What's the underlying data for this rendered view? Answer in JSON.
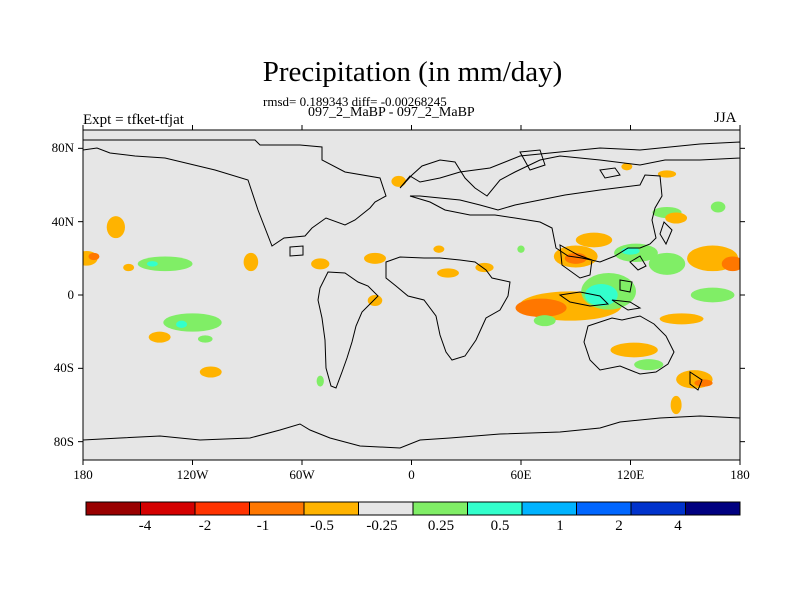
{
  "figure": {
    "title": "Precipitation (in mm/day)",
    "stats_line": "rmsd= 0.189343 diff= -0.00268245",
    "case_line": "097_2_MaBP - 097_2_MaBP",
    "left_label": "Expt = tfket-tfjat",
    "right_label": "JJA"
  },
  "map": {
    "background_color": "#e6e6e6",
    "lat_range": [
      -90,
      90
    ],
    "lon_range": [
      -180,
      180
    ],
    "y_ticks": [
      {
        "value": 80,
        "label": "80N"
      },
      {
        "value": 40,
        "label": "40N"
      },
      {
        "value": 0,
        "label": "0"
      },
      {
        "value": -40,
        "label": "40S"
      },
      {
        "value": -80,
        "label": "80S"
      }
    ],
    "x_ticks": [
      {
        "value": -180,
        "label": "180"
      },
      {
        "value": -120,
        "label": "120W"
      },
      {
        "value": -60,
        "label": "60W"
      },
      {
        "value": 0,
        "label": "0"
      },
      {
        "value": 60,
        "label": "60E"
      },
      {
        "value": 120,
        "label": "120E"
      },
      {
        "value": 180,
        "label": "180"
      }
    ]
  },
  "colorbar": {
    "colors": [
      "#990000",
      "#d40000",
      "#ff3300",
      "#ff7700",
      "#ffb300",
      "#e6e6e6",
      "#80ee66",
      "#33ffcc",
      "#00b3ff",
      "#0066ff",
      "#0033cc",
      "#000080"
    ],
    "labels": [
      "-4",
      "-2",
      "-1",
      "-0.5",
      "-0.25",
      "0.25",
      "0.5",
      "1",
      "2",
      "4"
    ]
  },
  "anomaly_regions": [
    {
      "lon": 87,
      "lat": -6,
      "rx": 28,
      "ry": 8,
      "level": "-0.5"
    },
    {
      "lon": 71,
      "lat": -7,
      "rx": 14,
      "ry": 5,
      "level": "-1"
    },
    {
      "lon": 108,
      "lat": 2,
      "rx": 15,
      "ry": 10,
      "level": "0.5"
    },
    {
      "lon": 104,
      "lat": 0,
      "rx": 9,
      "ry": 6,
      "level": "1"
    },
    {
      "lon": 90,
      "lat": 21,
      "rx": 12,
      "ry": 6,
      "level": "-0.5"
    },
    {
      "lon": 90,
      "lat": 20,
      "rx": 6,
      "ry": 3,
      "level": "-1"
    },
    {
      "lon": 123,
      "lat": 23,
      "rx": 12,
      "ry": 5,
      "level": "0.5"
    },
    {
      "lon": 120,
      "lat": 24,
      "rx": 5,
      "ry": 2,
      "level": "1"
    },
    {
      "lon": 140,
      "lat": 17,
      "rx": 10,
      "ry": 6,
      "level": "0.5"
    },
    {
      "lon": 165,
      "lat": 20,
      "rx": 14,
      "ry": 7,
      "level": "-0.5"
    },
    {
      "lon": 176,
      "lat": 17,
      "rx": 6,
      "ry": 4,
      "level": "-1"
    },
    {
      "lon": 165,
      "lat": 0,
      "rx": 12,
      "ry": 4,
      "level": "0.5"
    },
    {
      "lon": 148,
      "lat": -13,
      "rx": 12,
      "ry": 3,
      "level": "-0.5"
    },
    {
      "lon": 122,
      "lat": -30,
      "rx": 13,
      "ry": 4,
      "level": "-0.5"
    },
    {
      "lon": 155,
      "lat": -46,
      "rx": 10,
      "ry": 5,
      "level": "-0.5"
    },
    {
      "lon": 160,
      "lat": -48,
      "rx": 5,
      "ry": 2,
      "level": "-1"
    },
    {
      "lon": 145,
      "lat": -60,
      "rx": 3,
      "ry": 5,
      "level": "-0.5"
    },
    {
      "lon": 130,
      "lat": -38,
      "rx": 8,
      "ry": 3,
      "level": "0.5"
    },
    {
      "lon": 100,
      "lat": 30,
      "rx": 10,
      "ry": 4,
      "level": "-0.5"
    },
    {
      "lon": 140,
      "lat": 45,
      "rx": 8,
      "ry": 3,
      "level": "0.5"
    },
    {
      "lon": 145,
      "lat": 42,
      "rx": 6,
      "ry": 3,
      "level": "-0.5"
    },
    {
      "lon": 168,
      "lat": 48,
      "rx": 4,
      "ry": 3,
      "level": "0.5"
    },
    {
      "lon": 140,
      "lat": 66,
      "rx": 5,
      "ry": 2,
      "level": "-0.5"
    },
    {
      "lon": 118,
      "lat": 70,
      "rx": 3,
      "ry": 2,
      "level": "-0.5"
    },
    {
      "lon": -7,
      "lat": 62,
      "rx": 4,
      "ry": 3,
      "level": "-0.5"
    },
    {
      "lon": -162,
      "lat": 37,
      "rx": 5,
      "ry": 6,
      "level": "-0.5"
    },
    {
      "lon": -178,
      "lat": 20,
      "rx": 6,
      "ry": 4,
      "level": "-0.5"
    },
    {
      "lon": -174,
      "lat": 21,
      "rx": 3,
      "ry": 2,
      "level": "-1"
    },
    {
      "lon": -135,
      "lat": 17,
      "rx": 15,
      "ry": 4,
      "level": "0.5"
    },
    {
      "lon": -142,
      "lat": 17,
      "rx": 3,
      "ry": 1.5,
      "level": "1"
    },
    {
      "lon": -155,
      "lat": 15,
      "rx": 3,
      "ry": 2,
      "level": "-0.5"
    },
    {
      "lon": -120,
      "lat": -15,
      "rx": 16,
      "ry": 5,
      "level": "0.5"
    },
    {
      "lon": -113,
      "lat": -24,
      "rx": 4,
      "ry": 2,
      "level": "0.5"
    },
    {
      "lon": -126,
      "lat": -16,
      "rx": 3,
      "ry": 2,
      "level": "1"
    },
    {
      "lon": -138,
      "lat": -23,
      "rx": 6,
      "ry": 3,
      "level": "-0.5"
    },
    {
      "lon": -110,
      "lat": -42,
      "rx": 6,
      "ry": 3,
      "level": "-0.5"
    },
    {
      "lon": -88,
      "lat": 18,
      "rx": 4,
      "ry": 5,
      "level": "-0.5"
    },
    {
      "lon": -50,
      "lat": 17,
      "rx": 5,
      "ry": 3,
      "level": "-0.5"
    },
    {
      "lon": -20,
      "lat": 20,
      "rx": 6,
      "ry": 3,
      "level": "-0.5"
    },
    {
      "lon": 20,
      "lat": 12,
      "rx": 6,
      "ry": 2.5,
      "level": "-0.5"
    },
    {
      "lon": 40,
      "lat": 15,
      "rx": 5,
      "ry": 2.5,
      "level": "-0.5"
    },
    {
      "lon": -20,
      "lat": -3,
      "rx": 4,
      "ry": 3,
      "level": "-0.5"
    },
    {
      "lon": -50,
      "lat": -47,
      "rx": 2,
      "ry": 3,
      "level": "0.5"
    },
    {
      "lon": 60,
      "lat": 25,
      "rx": 2,
      "ry": 2,
      "level": "0.5"
    },
    {
      "lon": 15,
      "lat": 25,
      "rx": 3,
      "ry": 2,
      "level": "-0.5"
    },
    {
      "lon": 73,
      "lat": -14,
      "rx": 6,
      "ry": 3,
      "level": "0.5"
    }
  ]
}
